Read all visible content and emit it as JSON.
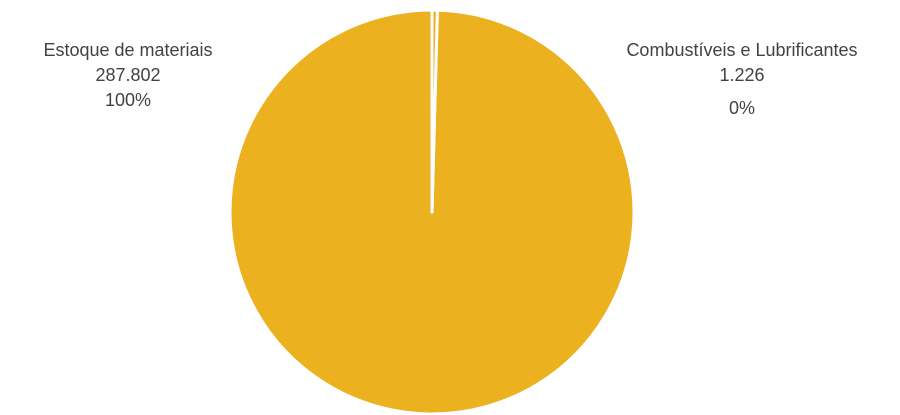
{
  "chart_data": {
    "type": "pie",
    "slices": [
      {
        "label": "Estoque de materiais",
        "value": 287802,
        "value_label": "287.802",
        "percent_label": "100%",
        "color": "#ebb11f"
      },
      {
        "label": "Combustíveis e Lubrificantes",
        "value": 1226,
        "value_label": "1.226",
        "percent_label": "0%",
        "color": "#ebb11f"
      }
    ],
    "slice_border_color": "#ffffff",
    "text_color": "#424242"
  }
}
